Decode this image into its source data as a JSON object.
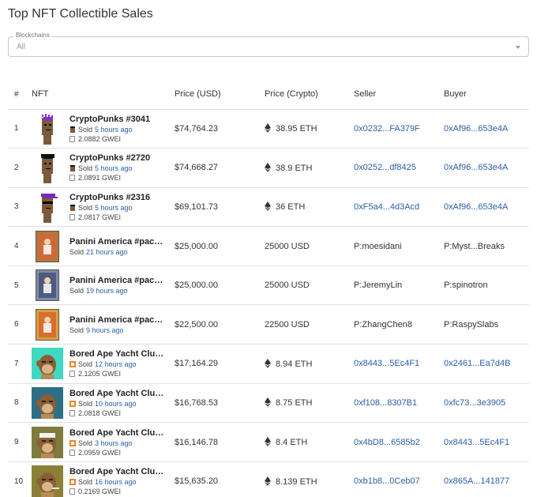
{
  "page": {
    "title": "Top NFT Collectible Sales"
  },
  "filter": {
    "label": "Blockchains",
    "value": "All"
  },
  "table": {
    "headers": {
      "num": "#",
      "nft": "NFT",
      "price_usd": "Price (USD)",
      "price_crypto": "Price (Crypto)",
      "seller": "Seller",
      "buyer": "Buyer"
    },
    "rows": [
      {
        "num": "1",
        "name": "CryptoPunks #3041",
        "sold": "Sold",
        "ago": "5 hours ago",
        "gas": "2.0882 GWEI",
        "usd": "$74,764.23",
        "crypto": "38.95 ETH",
        "eth": true,
        "seller": "0x0232...FA379F",
        "buyer": "0xAf96...653e4A",
        "seller_link": true,
        "buyer_link": true,
        "thumb": "punk1"
      },
      {
        "num": "2",
        "name": "CryptoPunks #2720",
        "sold": "Sold",
        "ago": "5 hours ago",
        "gas": "2.0891 GWEI",
        "usd": "$74,668.27",
        "crypto": "38.9 ETH",
        "eth": true,
        "seller": "0x0252...df8425",
        "buyer": "0xAf96...653e4A",
        "seller_link": true,
        "buyer_link": true,
        "thumb": "punk2"
      },
      {
        "num": "3",
        "name": "CryptoPunks #2316",
        "sold": "Sold",
        "ago": "5 hours ago",
        "gas": "2.0817 GWEI",
        "usd": "$69,101.73",
        "crypto": "36 ETH",
        "eth": true,
        "seller": "0xF5a4...4d3Acd",
        "buyer": "0xAf96...653e4A",
        "seller_link": true,
        "buyer_link": true,
        "thumb": "punk3"
      },
      {
        "num": "4",
        "name": "Panini America #pack...",
        "sold": "Sold",
        "ago": "21 hours ago",
        "gas": "",
        "usd": "$25,000.00",
        "crypto": "25000 USD",
        "eth": false,
        "seller": "P:moesidani",
        "buyer": "P:Myst...Breaks",
        "seller_link": false,
        "buyer_link": false,
        "thumb": "card1"
      },
      {
        "num": "5",
        "name": "Panini America #pack...",
        "sold": "Sold",
        "ago": "19 hours ago",
        "gas": "",
        "usd": "$25,000.00",
        "crypto": "25000 USD",
        "eth": false,
        "seller": "P:JeremyLin",
        "buyer": "P:spinotron",
        "seller_link": false,
        "buyer_link": false,
        "thumb": "card2"
      },
      {
        "num": "6",
        "name": "Panini America #pack...",
        "sold": "Sold",
        "ago": "9 hours ago",
        "gas": "",
        "usd": "$22,500.00",
        "crypto": "22500 USD",
        "eth": false,
        "seller": "P:ZhangChen8",
        "buyer": "P:RaspySlabs",
        "seller_link": false,
        "buyer_link": false,
        "thumb": "card3"
      },
      {
        "num": "7",
        "name": "Bored Ape Yacht Club ...",
        "sold": "Sold",
        "ago": "12 hours ago",
        "gas": "2.1205 GWEI",
        "usd": "$17,164.29",
        "crypto": "8.94 ETH",
        "eth": true,
        "seller": "0x8443...5Ec4F1",
        "buyer": "0x2461...Ea7d4B",
        "seller_link": true,
        "buyer_link": true,
        "thumb": "ape1"
      },
      {
        "num": "8",
        "name": "Bored Ape Yacht Club ...",
        "sold": "Sold",
        "ago": "10 hours ago",
        "gas": "2.0818 GWEI",
        "usd": "$16,768.53",
        "crypto": "8.75 ETH",
        "eth": true,
        "seller": "0xf108...8307B1",
        "buyer": "0xfc73...3e3905",
        "seller_link": true,
        "buyer_link": true,
        "thumb": "ape2"
      },
      {
        "num": "9",
        "name": "Bored Ape Yacht Club ...",
        "sold": "Sold",
        "ago": "3 hours ago",
        "gas": "2.0959 GWEI",
        "usd": "$16,146.78",
        "crypto": "8.4 ETH",
        "eth": true,
        "seller": "0x4bD8...6585b2",
        "buyer": "0x8443...5Ec4F1",
        "seller_link": true,
        "buyer_link": true,
        "thumb": "ape3"
      },
      {
        "num": "10",
        "name": "Bored Ape Yacht Club ...",
        "sold": "Sold",
        "ago": "16 hours ago",
        "gas": "0.2169 GWEI",
        "usd": "$15,635.20",
        "crypto": "8.139 ETH",
        "eth": true,
        "seller": "0xb1b8...0Ceb07",
        "buyer": "0x865A...141877",
        "seller_link": true,
        "buyer_link": true,
        "thumb": "ape4"
      }
    ]
  },
  "colors": {
    "link": "#2a5ea8",
    "punk_bg": "#ffffff",
    "ape1_bg": "#3fd9c1",
    "ape2_bg": "#2d6f86",
    "ape3_bg": "#7e7b3e",
    "ape4_bg": "#8a8038"
  }
}
